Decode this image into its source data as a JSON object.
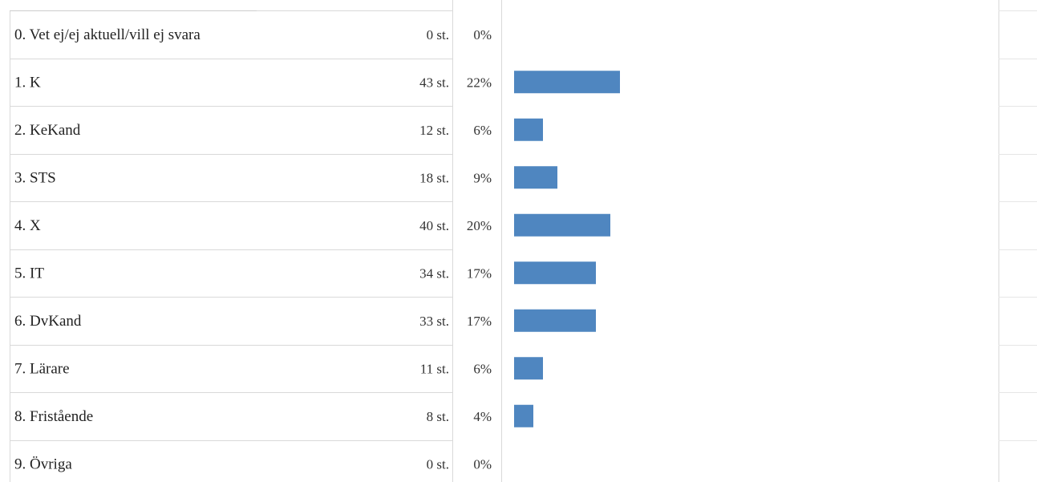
{
  "chart_data": {
    "type": "bar",
    "orientation": "horizontal",
    "categories": [
      "0.  Vet ej/ej aktuell/vill ej svara",
      "1.  K",
      "2.  KeKand",
      "3.  STS",
      "4.  X",
      "5.  IT",
      "6.  DvKand",
      "7.  Lärare",
      "8.  Fristående",
      "9.  Övriga"
    ],
    "values": [
      0,
      43,
      12,
      18,
      40,
      34,
      33,
      11,
      8,
      0
    ],
    "count_labels": [
      "0 st.",
      "43 st.",
      "12 st.",
      "18 st.",
      "40 st.",
      "34 st.",
      "33 st.",
      "11 st.",
      "8 st.",
      "0 st."
    ],
    "percent_labels": [
      "0%",
      "22%",
      "6%",
      "9%",
      "20%",
      "17%",
      "17%",
      "6%",
      "4%",
      "0%"
    ],
    "percents": [
      0,
      22,
      6,
      9,
      20,
      17,
      17,
      6,
      4,
      0
    ],
    "xlim": [
      0,
      100
    ],
    "grid": true,
    "bar_color": "#4f86c0"
  }
}
